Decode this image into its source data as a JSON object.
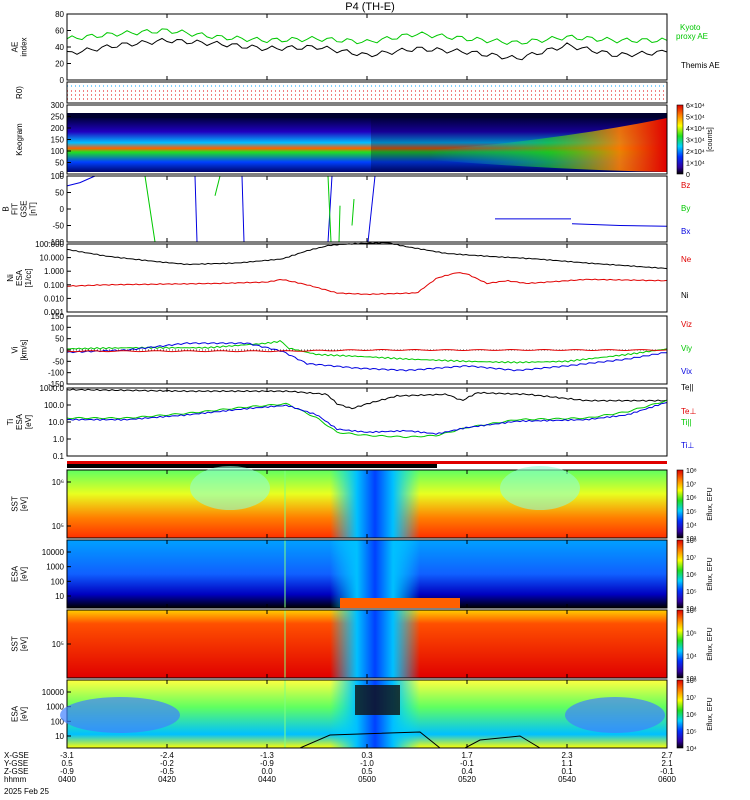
{
  "title": "P4 (TH-E)",
  "footer": {
    "coord_labels": [
      "X-GSE",
      "Y-GSE",
      "Z-GSE",
      "hhmm",
      "2025 Feb 25"
    ],
    "columns": [
      {
        "x": "-3.1",
        "y": "0.5",
        "z": "-0.9",
        "t": "0400"
      },
      {
        "x": "-2.4",
        "y": "-0.2",
        "z": "-0.5",
        "t": "0420"
      },
      {
        "x": "-1.3",
        "y": "-0.9",
        "z": "0.0",
        "t": "0440"
      },
      {
        "x": "0.3",
        "y": "-1.0",
        "z": "0.5",
        "t": "0500"
      },
      {
        "x": "1.7",
        "y": "-0.1",
        "z": "0.4",
        "t": "0520"
      },
      {
        "x": "2.3",
        "y": "1.1",
        "z": "0.1",
        "t": "0540"
      },
      {
        "x": "2.7",
        "y": "2.1",
        "z": "-0.1",
        "t": "0600"
      }
    ]
  },
  "colors": {
    "black": "#000000",
    "green": "#00c800",
    "red": "#e00000",
    "blue": "#0000e0"
  },
  "chart_data": [
    {
      "type": "line",
      "ylabel": "AE index",
      "ylim": [
        0,
        80
      ],
      "yticks": [
        "0",
        "20",
        "40",
        "60",
        "80"
      ],
      "x": [
        0,
        10,
        20,
        30,
        40,
        50,
        60,
        70,
        80,
        90,
        100,
        110,
        120
      ],
      "series": [
        {
          "name": "Kyoto proxy AE",
          "values": [
            50,
            56,
            60,
            52,
            48,
            50,
            46,
            56,
            50,
            45,
            52,
            48,
            48
          ]
        },
        {
          "name": "Themis AE",
          "values": [
            32,
            42,
            48,
            44,
            38,
            40,
            30,
            38,
            34,
            26,
            42,
            30,
            34
          ]
        }
      ]
    },
    {
      "type": "line",
      "ylabel": "R0)",
      "note_series": "dotted flags",
      "series": []
    },
    {
      "type": "heatmap",
      "ylabel": "Keogram",
      "ylim": [
        0,
        300
      ],
      "yticks": [
        "0",
        "50",
        "100",
        "150",
        "200",
        "250",
        "300"
      ],
      "colorbar_label": "[counts]",
      "colorbar_ticks": [
        "0",
        "1×10⁴",
        "2×10⁴",
        "3×10⁴",
        "4×10⁴",
        "5×10⁴",
        "6×10⁴"
      ]
    },
    {
      "type": "line",
      "ylabel": "B FIT GSE [nT]",
      "ylim": [
        -100,
        100
      ],
      "yticks": [
        "-100",
        "-50",
        "0",
        "50",
        "100"
      ],
      "series": [
        {
          "name": "Bz",
          "values": []
        },
        {
          "name": "By",
          "values": []
        },
        {
          "name": "Bx",
          "values": []
        }
      ]
    },
    {
      "type": "line",
      "ylabel": "Ni ESA [1/cc]",
      "ylim_log": [
        0.001,
        100
      ],
      "yticks": [
        "100.000",
        "10.000",
        "1.000",
        "0.100",
        "0.010",
        "0.001"
      ],
      "series": [
        {
          "name": "Ne",
          "values": []
        },
        {
          "name": "Ni",
          "values": []
        }
      ]
    },
    {
      "type": "line",
      "ylabel": "Vi [km/s]",
      "ylim": [
        -150,
        150
      ],
      "yticks": [
        "150",
        "100",
        "50",
        "0",
        "-50",
        "-100",
        "-150"
      ],
      "series": [
        {
          "name": "Viz",
          "values": []
        },
        {
          "name": "Viy",
          "values": []
        },
        {
          "name": "Vix",
          "values": []
        }
      ]
    },
    {
      "type": "line",
      "ylabel": "Ti ESA [eV]",
      "ylim_log": [
        0.1,
        1000
      ],
      "yticks": [
        "1000.0",
        "100.0",
        "10.0",
        "1.0",
        "0.1"
      ],
      "series": [
        {
          "name": "Te||",
          "values": []
        },
        {
          "name": "Te⊥",
          "values": []
        },
        {
          "name": "Ti||",
          "values": []
        },
        {
          "name": "Ti⊥",
          "values": []
        }
      ]
    },
    {
      "type": "heatmap",
      "ylabel": "SST [eV]",
      "yticks": [
        "10⁶",
        "10⁵"
      ],
      "colorbar_label": "Eflux, EFU",
      "colorbar_ticks": [
        "10³",
        "10⁴",
        "10⁵",
        "10⁶",
        "10⁷",
        "10⁸"
      ]
    },
    {
      "type": "heatmap",
      "ylabel": "ESA [eV]",
      "yticks": [
        "10000",
        "1000",
        "100",
        "10"
      ],
      "colorbar_label": "Eflux, EFU",
      "colorbar_ticks": [
        "10⁴",
        "10⁵",
        "10⁶",
        "10⁷",
        "10⁸"
      ]
    },
    {
      "type": "heatmap",
      "ylabel": "SST [eV]",
      "yticks": [
        "10⁵"
      ],
      "colorbar_label": "Eflux, EFU",
      "colorbar_ticks": [
        "10³",
        "10⁴",
        "10⁵",
        "10⁶"
      ]
    },
    {
      "type": "heatmap",
      "ylabel": "ESA [eV]",
      "yticks": [
        "10000",
        "1000",
        "100",
        "10"
      ],
      "colorbar_label": "Eflux, EFU",
      "colorbar_ticks": [
        "10⁴",
        "10⁵",
        "10⁶",
        "10⁷",
        "10⁸"
      ]
    }
  ]
}
